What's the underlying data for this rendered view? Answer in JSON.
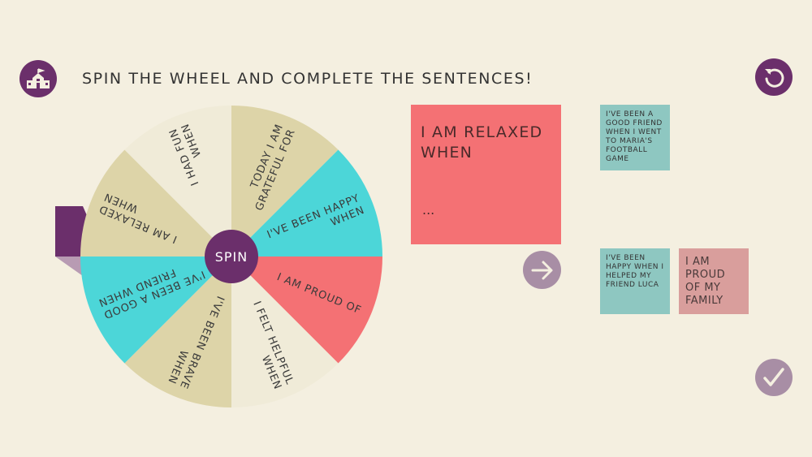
{
  "header": {
    "title": "SPIN THE WHEEL AND COMPLETE THE SENTENCES!",
    "home_icon": "school-icon",
    "restart_icon": "restart-icon"
  },
  "wheel": {
    "center_label": "SPIN",
    "segments": [
      {
        "label_lines": [
          "TODAY I AM",
          "GRATEFUL FOR"
        ],
        "color": "#ddd4a8"
      },
      {
        "label_lines": [
          "I'VE BEEN HAPPY",
          "WHEN"
        ],
        "color": "#4cd6d8"
      },
      {
        "label_lines": [
          "I AM PROUD OF"
        ],
        "color": "#f47174"
      },
      {
        "label_lines": [
          "I FELT HELPFUL",
          "WHEN"
        ],
        "color": "#f0ebd8"
      },
      {
        "label_lines": [
          "I'VE BEEN BRAVE",
          "WHEN"
        ],
        "color": "#ddd4a8"
      },
      {
        "label_lines": [
          "I'VE BEEN A GOOD",
          "FRIEND WHEN"
        ],
        "color": "#4cd6d8"
      },
      {
        "label_lines": [
          "I AM RELAXED",
          "WHEN"
        ],
        "color": "#ddd4a8"
      },
      {
        "label_lines": [
          "I HAD FUN",
          "WHEN"
        ],
        "color": "#f0ebd8"
      }
    ],
    "pointer_color": "#6b2f6b",
    "center_color": "#6b2f6b"
  },
  "prompt_card": {
    "text": "I AM RELAXED WHEN",
    "ellipsis": "..."
  },
  "notes": [
    {
      "text": "I'VE BEEN A GOOD FRIEND WHEN I WENT TO MARIA'S FOOTBALL GAME"
    },
    {
      "text": "I'VE BEEN HAPPY WHEN I HELPED MY FRIEND LUCA"
    },
    {
      "text": "I AM PROUD OF MY FAMILY"
    }
  ],
  "buttons": {
    "next_icon": "arrow-right-icon",
    "done_icon": "checkmark-icon"
  }
}
